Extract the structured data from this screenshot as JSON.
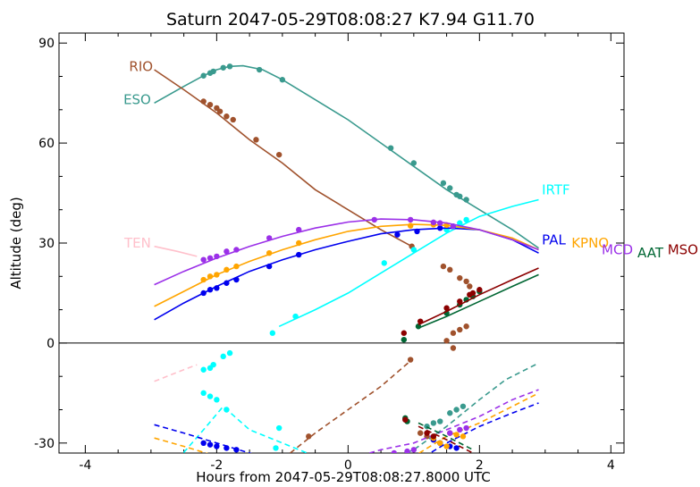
{
  "chart_data": {
    "type": "line",
    "title": "Saturn 2047-05-29T08:08:27  K7.94  G11.70",
    "xlabel": "Hours from 2047-05-29T08:08:27.8000 UTC",
    "ylabel": "Altitude (deg)",
    "xlim": [
      -4.4,
      4.2
    ],
    "ylim": [
      -33,
      93
    ],
    "xticks": [
      -4,
      -2,
      0,
      2,
      4
    ],
    "xtick_labels": [
      "-4",
      "-2",
      "0",
      "2",
      "4"
    ],
    "yticks": [
      -30,
      0,
      30,
      60,
      90
    ],
    "ytick_labels": [
      "-30",
      "0",
      "30",
      "60",
      "90"
    ],
    "zero_line": 0,
    "series": [
      {
        "name": "ESO",
        "color": "#3a9a8e",
        "line": [
          [
            -2.95,
            72
          ],
          [
            -2.5,
            77
          ],
          [
            -2.2,
            80.2
          ],
          [
            -2.0,
            82
          ],
          [
            -1.8,
            83
          ],
          [
            -1.6,
            83.2
          ],
          [
            -1.3,
            82
          ],
          [
            -1.0,
            79
          ],
          [
            -0.5,
            73
          ],
          [
            0,
            67
          ],
          [
            0.5,
            60
          ],
          [
            1.0,
            53
          ],
          [
            1.5,
            46
          ],
          [
            2.0,
            40
          ],
          [
            2.5,
            34
          ],
          [
            2.9,
            28.5
          ]
        ],
        "dashed": [
          [
            -0.1,
            -42
          ],
          [
            0.5,
            -36
          ],
          [
            1.0,
            -32
          ],
          [
            1.5,
            -25
          ],
          [
            2.0,
            -17
          ],
          [
            2.4,
            -11
          ],
          [
            2.9,
            -6
          ]
        ],
        "points": [
          [
            -2.2,
            80.2
          ],
          [
            -2.1,
            81
          ],
          [
            -2.05,
            81.5
          ],
          [
            -1.9,
            82.6
          ],
          [
            -1.8,
            83
          ],
          [
            -1.35,
            82
          ],
          [
            -1.0,
            79
          ],
          [
            0.65,
            58.5
          ],
          [
            1.0,
            54
          ],
          [
            1.45,
            48
          ],
          [
            1.55,
            46.5
          ],
          [
            1.65,
            44.5
          ],
          [
            1.7,
            44
          ],
          [
            1.8,
            43
          ],
          [
            1.2,
            -25
          ],
          [
            1.3,
            -24
          ],
          [
            1.4,
            -23.5
          ],
          [
            1.55,
            -21
          ],
          [
            1.65,
            -20
          ],
          [
            1.75,
            -19
          ]
        ]
      },
      {
        "name": "RIO",
        "color": "#a0522d",
        "line": [
          [
            -2.95,
            82
          ],
          [
            -2.5,
            76
          ],
          [
            -2.0,
            69
          ],
          [
            -1.5,
            61
          ],
          [
            -1.0,
            54
          ],
          [
            -0.5,
            46
          ],
          [
            0,
            40
          ],
          [
            0.5,
            34
          ],
          [
            0.97,
            29
          ]
        ],
        "dashed": [
          [
            -1.2,
            -38
          ],
          [
            -0.5,
            -27
          ],
          [
            0,
            -20
          ],
          [
            0.5,
            -13
          ],
          [
            0.97,
            -5
          ]
        ],
        "points": [
          [
            -2.2,
            72.5
          ],
          [
            -2.1,
            71.5
          ],
          [
            -2.0,
            70.5
          ],
          [
            -1.95,
            69.5
          ],
          [
            -1.85,
            68
          ],
          [
            -1.75,
            67
          ],
          [
            -1.4,
            61
          ],
          [
            -1.05,
            56.5
          ],
          [
            0.97,
            29
          ],
          [
            1.45,
            23
          ],
          [
            1.55,
            22
          ],
          [
            1.7,
            19.5
          ],
          [
            1.8,
            18.5
          ],
          [
            1.85,
            17
          ],
          [
            1.5,
            0.7
          ],
          [
            1.6,
            3
          ],
          [
            1.7,
            4
          ],
          [
            1.8,
            5
          ],
          [
            1.6,
            -1.5
          ],
          [
            -0.6,
            -28
          ],
          [
            0.95,
            -5
          ],
          [
            1.1,
            -27
          ],
          [
            1.2,
            -28
          ],
          [
            1.3,
            -29
          ],
          [
            1.4,
            -30
          ]
        ]
      },
      {
        "name": "IRTF",
        "color": "#00ffff",
        "line": [
          [
            -1.05,
            5
          ],
          [
            -0.5,
            10
          ],
          [
            0,
            15
          ],
          [
            0.5,
            21
          ],
          [
            1.0,
            27
          ],
          [
            1.5,
            33
          ],
          [
            2.0,
            38
          ],
          [
            2.5,
            41
          ],
          [
            2.9,
            43
          ]
        ],
        "dashed": [
          [
            -2.95,
            -43
          ],
          [
            -2.2,
            -26
          ],
          [
            -1.9,
            -19
          ],
          [
            -1.5,
            -26
          ],
          [
            -1.0,
            -30
          ],
          [
            -0.5,
            -34
          ],
          [
            0,
            -38
          ]
        ],
        "points": [
          [
            -1.15,
            3
          ],
          [
            -0.8,
            8
          ],
          [
            0.55,
            24
          ],
          [
            1.0,
            28
          ],
          [
            1.5,
            34
          ],
          [
            1.6,
            35
          ],
          [
            1.7,
            36
          ],
          [
            1.8,
            37
          ],
          [
            -2.2,
            -8
          ],
          [
            -2.1,
            -7.5
          ],
          [
            -2.05,
            -6.5
          ],
          [
            -1.9,
            -4
          ],
          [
            -1.8,
            -3
          ],
          [
            -2.2,
            -15
          ],
          [
            -2.1,
            -16
          ],
          [
            -2.0,
            -17
          ],
          [
            -1.85,
            -20
          ],
          [
            -1.05,
            -25.5
          ],
          [
            -1.1,
            -31.5
          ]
        ]
      },
      {
        "name": "PAL",
        "color": "#0000ee",
        "line": [
          [
            -2.95,
            7
          ],
          [
            -2.5,
            12
          ],
          [
            -2.0,
            17
          ],
          [
            -1.5,
            21.5
          ],
          [
            -1.0,
            25
          ],
          [
            -0.5,
            28
          ],
          [
            0,
            30.5
          ],
          [
            0.5,
            32.8
          ],
          [
            1.0,
            34
          ],
          [
            1.5,
            34.5
          ],
          [
            2.0,
            34
          ],
          [
            2.5,
            31
          ],
          [
            2.9,
            27
          ]
        ],
        "dashed": [
          [
            -2.95,
            -24.5
          ],
          [
            -2.5,
            -27
          ],
          [
            -2.0,
            -30
          ],
          [
            -1.5,
            -33
          ],
          [
            -1.0,
            -36
          ],
          [
            1.0,
            -36
          ],
          [
            1.5,
            -30
          ],
          [
            2.0,
            -25
          ],
          [
            2.5,
            -21
          ],
          [
            2.9,
            -18
          ]
        ],
        "points": [
          [
            -2.2,
            15
          ],
          [
            -2.1,
            16
          ],
          [
            -2.0,
            16.5
          ],
          [
            -1.85,
            18
          ],
          [
            -1.7,
            19
          ],
          [
            -1.2,
            23
          ],
          [
            -0.75,
            26.5
          ],
          [
            0.75,
            32.5
          ],
          [
            1.05,
            33.5
          ],
          [
            1.4,
            34.5
          ],
          [
            1.6,
            35
          ],
          [
            -2.2,
            -30
          ],
          [
            -2.1,
            -30.5
          ],
          [
            -2.0,
            -31
          ],
          [
            -1.85,
            -31.5
          ],
          [
            -1.7,
            -32
          ],
          [
            1.3,
            -29
          ],
          [
            1.4,
            -30
          ],
          [
            1.55,
            -31
          ],
          [
            1.65,
            -31.5
          ]
        ]
      },
      {
        "name": "KPNO",
        "color": "#ffa500",
        "line": [
          [
            -2.95,
            11
          ],
          [
            -2.5,
            15.5
          ],
          [
            -2.0,
            20.5
          ],
          [
            -1.5,
            24.5
          ],
          [
            -1.0,
            28
          ],
          [
            -0.5,
            31
          ],
          [
            0,
            33.5
          ],
          [
            0.5,
            35
          ],
          [
            1.0,
            35.6
          ],
          [
            1.5,
            35.3
          ],
          [
            2.0,
            34
          ],
          [
            2.5,
            31.5
          ],
          [
            2.9,
            28
          ]
        ],
        "dashed": [
          [
            -2.95,
            -28.5
          ],
          [
            -2.5,
            -31
          ],
          [
            -2.0,
            -34
          ],
          [
            1.0,
            -34
          ],
          [
            1.5,
            -28
          ],
          [
            2.0,
            -24
          ],
          [
            2.5,
            -19
          ],
          [
            2.9,
            -15
          ]
        ],
        "points": [
          [
            -2.2,
            19
          ],
          [
            -2.1,
            20
          ],
          [
            -2.0,
            20.5
          ],
          [
            -1.85,
            22
          ],
          [
            -1.7,
            23
          ],
          [
            -1.2,
            27
          ],
          [
            -0.75,
            30
          ],
          [
            0.95,
            35.2
          ],
          [
            1.3,
            35.5
          ],
          [
            1.5,
            35.4
          ],
          [
            1.55,
            -27
          ],
          [
            1.65,
            -27.5
          ],
          [
            1.75,
            -28
          ],
          [
            1.3,
            -28.5
          ],
          [
            1.4,
            -30
          ],
          [
            1.5,
            -31
          ]
        ]
      },
      {
        "name": "MCD",
        "color": "#9b30e8",
        "line": [
          [
            -2.95,
            17.5
          ],
          [
            -2.5,
            21.5
          ],
          [
            -2.0,
            25.5
          ],
          [
            -1.5,
            29
          ],
          [
            -1.0,
            32
          ],
          [
            -0.5,
            34.5
          ],
          [
            0,
            36.3
          ],
          [
            0.5,
            37.2
          ],
          [
            1.0,
            37
          ],
          [
            1.5,
            36
          ],
          [
            2.0,
            34
          ],
          [
            2.5,
            31
          ],
          [
            2.9,
            28
          ]
        ],
        "dashed": [
          [
            -0.2,
            -36
          ],
          [
            0.5,
            -32
          ],
          [
            1.0,
            -30
          ],
          [
            1.5,
            -26
          ],
          [
            2.0,
            -22
          ],
          [
            2.5,
            -17
          ],
          [
            2.9,
            -14
          ]
        ],
        "points": [
          [
            -2.2,
            25
          ],
          [
            -2.1,
            25.5
          ],
          [
            -2.0,
            26
          ],
          [
            -1.85,
            27.5
          ],
          [
            -1.7,
            28
          ],
          [
            -1.2,
            31.5
          ],
          [
            -0.75,
            34
          ],
          [
            0.4,
            37
          ],
          [
            0.95,
            37
          ],
          [
            1.3,
            36.2
          ],
          [
            1.4,
            36
          ],
          [
            1.6,
            35
          ],
          [
            0.7,
            -33
          ],
          [
            0.9,
            -32.5
          ],
          [
            1.0,
            -32
          ],
          [
            1.55,
            -27
          ],
          [
            1.7,
            -26
          ],
          [
            1.8,
            -25.5
          ]
        ]
      },
      {
        "name": "AAT",
        "color": "#006633",
        "line": [
          [
            1.07,
            4.5
          ],
          [
            1.5,
            8
          ],
          [
            2.0,
            12.5
          ],
          [
            2.5,
            17
          ],
          [
            2.9,
            20.5
          ]
        ],
        "dashed": [
          [
            1.07,
            -24
          ],
          [
            1.5,
            -28
          ],
          [
            1.9,
            -32
          ]
        ],
        "points": [
          [
            1.07,
            5
          ],
          [
            1.5,
            9
          ],
          [
            1.7,
            11.5
          ],
          [
            1.8,
            13
          ],
          [
            1.9,
            14
          ],
          [
            2.0,
            15.5
          ],
          [
            0.85,
            1
          ],
          [
            0.87,
            -22.5
          ],
          [
            0.9,
            -23.5
          ]
        ]
      },
      {
        "name": "MSO",
        "color": "#8b0000",
        "line": [
          [
            1.07,
            5.5
          ],
          [
            1.5,
            9.5
          ],
          [
            2.0,
            14.5
          ],
          [
            2.5,
            19
          ],
          [
            2.9,
            22.5
          ]
        ],
        "dashed": [
          [
            1.07,
            -25
          ],
          [
            1.5,
            -29
          ],
          [
            1.9,
            -33
          ]
        ],
        "points": [
          [
            1.1,
            6.5
          ],
          [
            1.5,
            10.5
          ],
          [
            1.7,
            12.5
          ],
          [
            1.85,
            14.5
          ],
          [
            1.9,
            15
          ],
          [
            2.0,
            16
          ],
          [
            0.85,
            3
          ],
          [
            0.87,
            -23
          ],
          [
            1.2,
            -27
          ],
          [
            1.3,
            -28
          ]
        ]
      },
      {
        "name": "TEN",
        "color": "#ffc0cb",
        "line": [
          [
            -2.95,
            29
          ],
          [
            -2.6,
            27.5
          ],
          [
            -2.3,
            26
          ]
        ],
        "dashed": [
          [
            -2.95,
            -11.5
          ],
          [
            -2.5,
            -8
          ],
          [
            -2.3,
            -6.5
          ]
        ],
        "points": []
      }
    ],
    "labels": [
      {
        "name": "RIO",
        "color": "#a0522d",
        "x": -2.97,
        "y": 83
      },
      {
        "name": "ESO",
        "color": "#3a9a8e",
        "x": -3.0,
        "y": 73
      },
      {
        "name": "TEN",
        "color": "#ffc0cb",
        "x": -3.0,
        "y": 30
      },
      {
        "name": "IRTF",
        "color": "#00ffff",
        "x": 2.95,
        "y": 46
      },
      {
        "name": "PAL",
        "color": "#0000ee",
        "x": 2.95,
        "y": 31
      },
      {
        "name": "KPNO",
        "color": "#ffa500",
        "x": 3.4,
        "y": 30
      },
      {
        "name": "MCD",
        "color": "#9b30e8",
        "x": 3.9,
        "y": 28
      },
      {
        "name": "AAT",
        "color": "#006633",
        "x": 4.4,
        "y": 27
      },
      {
        "name": "MSO",
        "color": "#8b0000",
        "x": 4.95,
        "y": 28
      }
    ]
  }
}
